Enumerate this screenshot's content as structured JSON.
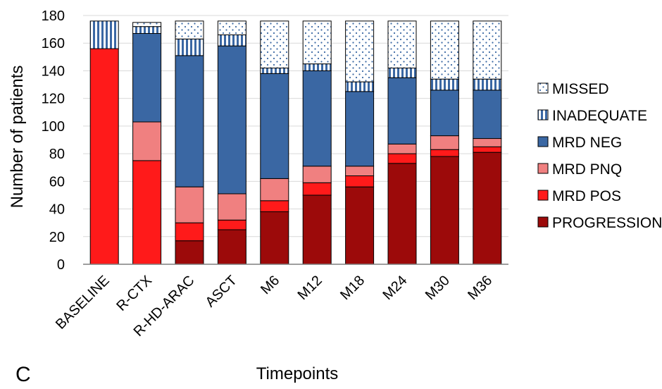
{
  "panel_label": "C",
  "chart_data": {
    "type": "bar",
    "stacked": true,
    "categories": [
      "BASELINE",
      "R-CTX",
      "R-HD-ARAC",
      "ASCT",
      "M6",
      "M12",
      "M18",
      "M24",
      "M30",
      "M36"
    ],
    "series": [
      {
        "name": "PROGRESSION",
        "color": "#9c0a0a",
        "pattern": "solid",
        "values": [
          0,
          0,
          17,
          25,
          38,
          50,
          56,
          73,
          78,
          81
        ]
      },
      {
        "name": "MRD POS",
        "color": "#ff1a1a",
        "pattern": "solid",
        "values": [
          156,
          75,
          13,
          7,
          8,
          9,
          8,
          7,
          5,
          4
        ]
      },
      {
        "name": "MRD PNQ",
        "color": "#f08080",
        "pattern": "solid",
        "values": [
          0,
          28,
          26,
          19,
          16,
          12,
          7,
          7,
          10,
          6
        ]
      },
      {
        "name": "MRD NEG",
        "color": "#3a67a3",
        "pattern": "solid",
        "values": [
          0,
          64,
          95,
          107,
          76,
          69,
          54,
          48,
          33,
          35
        ]
      },
      {
        "name": "INADEQUATE",
        "color": "#3a67a3",
        "pattern": "vstripes",
        "values": [
          20,
          5,
          12,
          8,
          4,
          5,
          7,
          7,
          8,
          8
        ]
      },
      {
        "name": "MISSED",
        "color": "#3a67a3",
        "pattern": "dots",
        "values": [
          0,
          3,
          13,
          10,
          34,
          31,
          44,
          34,
          42,
          42
        ]
      }
    ],
    "yticks": [
      0,
      20,
      40,
      60,
      80,
      100,
      120,
      140,
      160,
      180
    ],
    "ylim": [
      0,
      180
    ],
    "ylabel": "Number of patients",
    "xlabel": "Timepoints",
    "legend_position": "right",
    "grid": "horizontal"
  }
}
